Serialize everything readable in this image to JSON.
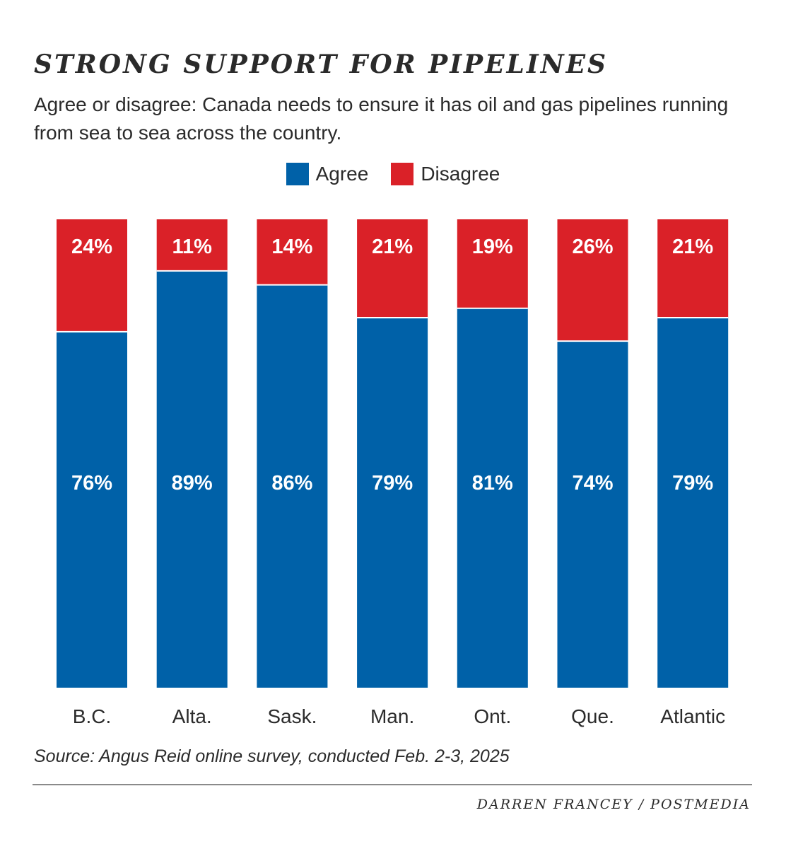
{
  "header": {
    "title": "STRONG SUPPORT FOR PIPELINES",
    "subtitle": "Agree or disagree: Canada needs to ensure it has oil and gas pipelines running from sea to sea across the country."
  },
  "legend": {
    "agree_label": "Agree",
    "disagree_label": "Disagree"
  },
  "colors": {
    "agree": "#0061a8",
    "disagree": "#da2128",
    "label_text": "#ffffff"
  },
  "chart_data": {
    "type": "bar",
    "stacked": true,
    "categories": [
      "B.C.",
      "Alta.",
      "Sask.",
      "Man.",
      "Ont.",
      "Que.",
      "Atlantic"
    ],
    "series": [
      {
        "name": "Agree",
        "values": [
          76,
          89,
          86,
          79,
          81,
          74,
          79
        ],
        "labels": [
          "76%",
          "89%",
          "86%",
          "79%",
          "81%",
          "74%",
          "79%"
        ]
      },
      {
        "name": "Disagree",
        "values": [
          24,
          11,
          14,
          21,
          19,
          26,
          21
        ],
        "labels": [
          "24%",
          "11%",
          "14%",
          "21%",
          "19%",
          "26%",
          "21%"
        ]
      }
    ],
    "title": "STRONG SUPPORT FOR PIPELINES",
    "xlabel": "",
    "ylabel": "",
    "ylim": [
      0,
      100
    ],
    "grid": false,
    "legend_position": "top-center"
  },
  "footer": {
    "source": "Source: Angus Reid online survey, conducted Feb. 2-3, 2025",
    "credit": "DARREN FRANCEY / POSTMEDIA"
  }
}
